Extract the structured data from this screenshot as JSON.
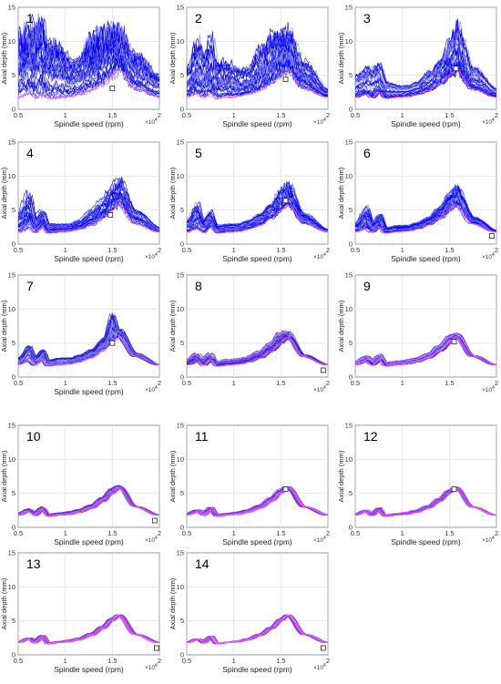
{
  "chart_data": [
    {
      "type": "line",
      "panel": "1",
      "xlabel": "Spindle speed (rpm)",
      "ylabel": "Axial depth (mm)",
      "x_multiplier": "×10^4",
      "xlim": [
        0.5,
        2
      ],
      "ylim": [
        0,
        15
      ],
      "xticks": [
        "0.5",
        "1",
        "1.5",
        "2"
      ],
      "yticks": [
        "0",
        "5",
        "10",
        "15"
      ],
      "grid": true,
      "band_colors": [
        "#0000ee",
        "#8080ff"
      ],
      "band_upper": [
        10.5,
        11,
        11.5,
        12,
        9,
        9,
        7,
        7,
        10,
        11,
        11.5,
        11.5,
        8,
        5
      ],
      "nominal": [
        1.8,
        2.3,
        1.7,
        2.2,
        1.6,
        1.8,
        1.9,
        2.2,
        2.8,
        3.8,
        5.0,
        5.8,
        3.0,
        1.8
      ],
      "marker": {
        "x": 1.5,
        "y": 3.1
      }
    },
    {
      "type": "line",
      "panel": "2",
      "xlabel": "Spindle speed (rpm)",
      "ylabel": "Axial depth (mm)",
      "x_multiplier": "×10^4",
      "xlim": [
        0.5,
        2
      ],
      "ylim": [
        0,
        15
      ],
      "xticks": [
        "0.5",
        "1",
        "1.5",
        "2"
      ],
      "yticks": [
        "0",
        "5",
        "10",
        "15"
      ],
      "grid": true,
      "band_colors": [
        "#0000ee",
        "#8080ff"
      ],
      "band_upper": [
        6,
        10,
        8,
        10.5,
        7,
        7,
        6,
        6,
        9,
        10.5,
        11.5,
        11.5,
        7,
        3
      ],
      "nominal": [
        1.8,
        2.3,
        1.7,
        2.3,
        1.6,
        1.8,
        1.9,
        2.2,
        2.8,
        3.8,
        5.0,
        5.8,
        3.0,
        1.8
      ],
      "marker": {
        "x": 1.55,
        "y": 4.4
      }
    },
    {
      "type": "line",
      "panel": "3",
      "xlabel": "Spindle speed (rpm)",
      "ylabel": "Axial depth (mm)",
      "x_multiplier": "×10^4",
      "xlim": [
        0.5,
        2
      ],
      "ylim": [
        0,
        15
      ],
      "xticks": [
        "0.5",
        "1",
        "1.5",
        "2"
      ],
      "yticks": [
        "0",
        "5",
        "10",
        "15"
      ],
      "grid": true,
      "band_colors": [
        "#0000ee",
        "#8080ff"
      ],
      "band_upper": [
        5,
        6,
        6,
        6.5,
        4,
        3.5,
        3.5,
        4,
        5.5,
        7,
        10,
        12,
        6,
        3
      ],
      "nominal": [
        1.8,
        2.3,
        1.7,
        2.5,
        1.6,
        1.8,
        1.9,
        2.2,
        2.8,
        3.8,
        5.0,
        5.8,
        3.0,
        1.8
      ],
      "marker": {
        "x": 1.57,
        "y": 6.0
      }
    },
    {
      "type": "line",
      "panel": "4",
      "xlabel": "Spindle speed (rpm)",
      "ylabel": "Axial depth (mm)",
      "x_multiplier": "×10^4",
      "xlim": [
        0.5,
        2
      ],
      "ylim": [
        0,
        15
      ],
      "xticks": [
        "0.5",
        "1",
        "1.5",
        "2"
      ],
      "yticks": [
        "0",
        "5",
        "10",
        "15"
      ],
      "grid": true,
      "band_colors": [
        "#0000ee",
        "#8080ff"
      ],
      "band_upper": [
        4.5,
        7.5,
        4,
        5,
        3,
        3,
        3,
        3.5,
        5,
        6.5,
        8.5,
        9.5,
        5,
        2.5
      ],
      "nominal": [
        1.8,
        2.3,
        1.7,
        2.5,
        1.6,
        1.8,
        1.9,
        2.2,
        2.8,
        3.8,
        5.0,
        5.8,
        3.0,
        1.8
      ],
      "marker": {
        "x": 1.48,
        "y": 4.3
      }
    },
    {
      "type": "line",
      "panel": "5",
      "xlabel": "Spindle speed (rpm)",
      "ylabel": "Axial depth (mm)",
      "x_multiplier": "×10^4",
      "xlim": [
        0.5,
        2
      ],
      "ylim": [
        0,
        15
      ],
      "xticks": [
        "0.5",
        "1",
        "1.5",
        "2"
      ],
      "yticks": [
        "0",
        "5",
        "10",
        "15"
      ],
      "grid": true,
      "band_colors": [
        "#0000ee",
        "#8080ff"
      ],
      "band_upper": [
        3.5,
        6,
        3.5,
        5,
        2.8,
        3,
        3,
        3.5,
        4.5,
        6,
        8,
        9,
        4.5,
        2.2
      ],
      "nominal": [
        1.8,
        2.3,
        1.7,
        2.5,
        1.6,
        1.8,
        1.9,
        2.2,
        2.8,
        3.8,
        5.0,
        5.8,
        3.0,
        1.8
      ],
      "marker": {
        "x": 1.55,
        "y": 6.4
      }
    },
    {
      "type": "line",
      "panel": "6",
      "xlabel": "Spindle speed (rpm)",
      "ylabel": "Axial depth (mm)",
      "x_multiplier": "×10^4",
      "xlim": [
        0.5,
        2
      ],
      "ylim": [
        0,
        15
      ],
      "xticks": [
        "0.5",
        "1",
        "1.5",
        "2"
      ],
      "yticks": [
        "0",
        "5",
        "10",
        "15"
      ],
      "grid": true,
      "band_colors": [
        "#0000ee",
        "#8080ff"
      ],
      "band_upper": [
        3,
        5.5,
        3.2,
        4.5,
        2.5,
        2.8,
        2.8,
        3.2,
        4,
        5.5,
        7.5,
        8.5,
        4,
        2
      ],
      "nominal": [
        1.8,
        2.3,
        1.7,
        2.5,
        1.6,
        1.8,
        1.9,
        2.2,
        2.8,
        3.8,
        5.0,
        5.8,
        3.0,
        1.8
      ],
      "marker": {
        "x": 1.95,
        "y": 1.2
      }
    },
    {
      "type": "line",
      "panel": "7",
      "xlabel": "Spindle speed (rpm)",
      "ylabel": "Axial depth (mm)",
      "x_multiplier": "×10^4",
      "xlim": [
        0.5,
        2
      ],
      "ylim": [
        0,
        15
      ],
      "xticks": [
        "0.5",
        "1",
        "1.5",
        "2"
      ],
      "yticks": [
        "0",
        "5",
        "10",
        "15"
      ],
      "grid": true,
      "band_colors": [
        "#1a1acc",
        "#9a8aff"
      ],
      "band_upper": [
        2.8,
        4.5,
        3,
        4,
        2.5,
        2.8,
        2.8,
        3.2,
        4,
        5.5,
        9,
        7,
        3.5,
        1.8
      ],
      "nominal": [
        1.8,
        2.3,
        1.7,
        2.5,
        1.6,
        1.8,
        1.9,
        2.2,
        2.8,
        3.8,
        5.0,
        5.8,
        3.0,
        1.8
      ],
      "marker": {
        "x": 1.5,
        "y": 5.0
      }
    },
    {
      "type": "line",
      "panel": "8",
      "xlabel": "",
      "ylabel": "Axial depth (mm)",
      "x_multiplier": "×10^4",
      "xlim": [
        0.5,
        2
      ],
      "ylim": [
        0,
        15
      ],
      "xticks": [
        "0.5",
        "1",
        "1.5",
        "2"
      ],
      "yticks": [
        "0",
        "5",
        "10",
        "15"
      ],
      "grid": true,
      "band_colors": [
        "#3a1ad0",
        "#b08aff"
      ],
      "band_upper": [
        2.5,
        3.5,
        2.8,
        3.6,
        2.3,
        2.6,
        2.7,
        3,
        3.8,
        5,
        6.5,
        6.8,
        3.3,
        1.8
      ],
      "nominal": [
        1.8,
        2.3,
        1.7,
        2.5,
        1.6,
        1.8,
        1.9,
        2.2,
        2.8,
        3.8,
        5.0,
        5.8,
        3.0,
        1.8
      ],
      "marker": {
        "x": 1.95,
        "y": 1.0
      }
    },
    {
      "type": "line",
      "panel": "9",
      "xlabel": "",
      "ylabel": "Axial depth (mm)",
      "x_multiplier": "×10^4",
      "xlim": [
        0.5,
        2
      ],
      "ylim": [
        0,
        15
      ],
      "xticks": [
        "0.5",
        "1",
        "1.5",
        "2"
      ],
      "yticks": [
        "0",
        "5",
        "10",
        "15"
      ],
      "grid": true,
      "band_colors": [
        "#4a20d8",
        "#c090ff"
      ],
      "band_upper": [
        2.3,
        3.2,
        2.6,
        3.4,
        2.2,
        2.4,
        2.6,
        2.9,
        3.6,
        4.8,
        6.2,
        6.5,
        3.2,
        1.8
      ],
      "nominal": [
        1.8,
        2.3,
        1.7,
        2.5,
        1.6,
        1.8,
        1.9,
        2.2,
        2.8,
        3.8,
        5.0,
        5.8,
        3.0,
        1.8
      ],
      "marker": {
        "x": 1.55,
        "y": 5.2
      }
    },
    {
      "type": "line",
      "panel": "10",
      "xlabel": "Spindle speed (rpm)",
      "ylabel": "Axial depth (mm)",
      "x_multiplier": "×10^4",
      "xlim": [
        0.5,
        2
      ],
      "ylim": [
        0,
        15
      ],
      "xticks": [
        "0.5",
        "1",
        "1.5",
        "2"
      ],
      "yticks": [
        "0",
        "5",
        "10",
        "15"
      ],
      "grid": true,
      "band_colors": [
        "#6030d0",
        "#d080ff"
      ],
      "band_upper": [
        2.1,
        2.8,
        2.4,
        3.1,
        2,
        2.2,
        2.4,
        2.7,
        3.4,
        4.5,
        5.8,
        6.2,
        3.1,
        1.8
      ],
      "nominal": [
        1.8,
        2.3,
        1.7,
        2.5,
        1.6,
        1.8,
        1.9,
        2.2,
        2.8,
        3.8,
        5.0,
        5.8,
        3.0,
        1.8
      ],
      "marker": {
        "x": 1.95,
        "y": 1.0
      }
    },
    {
      "type": "line",
      "panel": "11",
      "xlabel": "Spindle speed (rpm)",
      "ylabel": "Axial depth (mm)",
      "x_multiplier": "×10^4",
      "xlim": [
        0.5,
        2
      ],
      "ylim": [
        0,
        15
      ],
      "xticks": [
        "0.5",
        "1",
        "1.5",
        "2"
      ],
      "yticks": [
        "0",
        "5",
        "10",
        "15"
      ],
      "grid": true,
      "band_colors": [
        "#6a30d0",
        "#d880ff"
      ],
      "band_upper": [
        2,
        2.6,
        2.3,
        3,
        1.9,
        2.1,
        2.3,
        2.6,
        3.3,
        4.4,
        5.6,
        6,
        3,
        1.8
      ],
      "nominal": [
        1.8,
        2.3,
        1.7,
        2.5,
        1.6,
        1.8,
        1.9,
        2.2,
        2.8,
        3.8,
        5.0,
        5.8,
        3.0,
        1.8
      ],
      "marker": {
        "x": 1.55,
        "y": 5.6
      }
    },
    {
      "type": "line",
      "panel": "12",
      "xlabel": "Spindle speed (rpm)",
      "ylabel": "Axial depth (mm)",
      "x_multiplier": "×10^4",
      "xlim": [
        0.5,
        2
      ],
      "ylim": [
        0,
        15
      ],
      "xticks": [
        "0.5",
        "1",
        "1.5",
        "2"
      ],
      "yticks": [
        "0",
        "5",
        "10",
        "15"
      ],
      "grid": true,
      "band_colors": [
        "#6a30d0",
        "#d880ff"
      ],
      "band_upper": [
        2,
        2.6,
        2.3,
        3,
        1.9,
        2.1,
        2.3,
        2.6,
        3.3,
        4.4,
        5.6,
        6,
        3,
        1.8
      ],
      "nominal": [
        1.8,
        2.3,
        1.7,
        2.5,
        1.6,
        1.8,
        1.9,
        2.2,
        2.8,
        3.8,
        5.0,
        5.8,
        3.0,
        1.8
      ],
      "marker": {
        "x": 1.55,
        "y": 5.6
      }
    },
    {
      "type": "line",
      "panel": "13",
      "xlabel": "Spindle speed (rpm)",
      "ylabel": "Axial depth (mm)",
      "x_multiplier": "×10^4",
      "xlim": [
        0.5,
        2
      ],
      "ylim": [
        0,
        15
      ],
      "xticks": [
        "0.5",
        "1",
        "1.5",
        "2"
      ],
      "yticks": [
        "0",
        "5",
        "10",
        "15"
      ],
      "grid": true,
      "band_colors": [
        "#7a30d0",
        "#e080ff"
      ],
      "band_upper": [
        1.9,
        2.5,
        2.2,
        2.9,
        1.8,
        2,
        2.2,
        2.5,
        3.2,
        4.2,
        5.4,
        5.9,
        3,
        1.8
      ],
      "nominal": [
        1.8,
        2.3,
        1.7,
        2.5,
        1.6,
        1.8,
        1.9,
        2.2,
        2.8,
        3.8,
        5.0,
        5.8,
        3.0,
        1.8
      ],
      "marker": {
        "x": 1.97,
        "y": 1.0
      }
    },
    {
      "type": "line",
      "panel": "14",
      "xlabel": "Spindle speed (rpm)",
      "ylabel": "Axial depth (mm)",
      "x_multiplier": "×10^4",
      "xlim": [
        0.5,
        2
      ],
      "ylim": [
        0,
        15
      ],
      "xticks": [
        "0.5",
        "1",
        "1.5",
        "2"
      ],
      "yticks": [
        "0",
        "5",
        "10",
        "15"
      ],
      "grid": true,
      "band_colors": [
        "#8030d0",
        "#e890ff"
      ],
      "band_upper": [
        1.85,
        2.4,
        2.1,
        2.8,
        1.7,
        1.9,
        2.1,
        2.4,
        3.1,
        4.1,
        5.3,
        5.9,
        3,
        1.8
      ],
      "nominal": [
        1.8,
        2.3,
        1.7,
        2.5,
        1.6,
        1.8,
        1.9,
        2.2,
        2.8,
        3.8,
        5.0,
        5.8,
        3.0,
        1.8
      ],
      "marker": {
        "x": 1.95,
        "y": 1.0
      }
    }
  ]
}
